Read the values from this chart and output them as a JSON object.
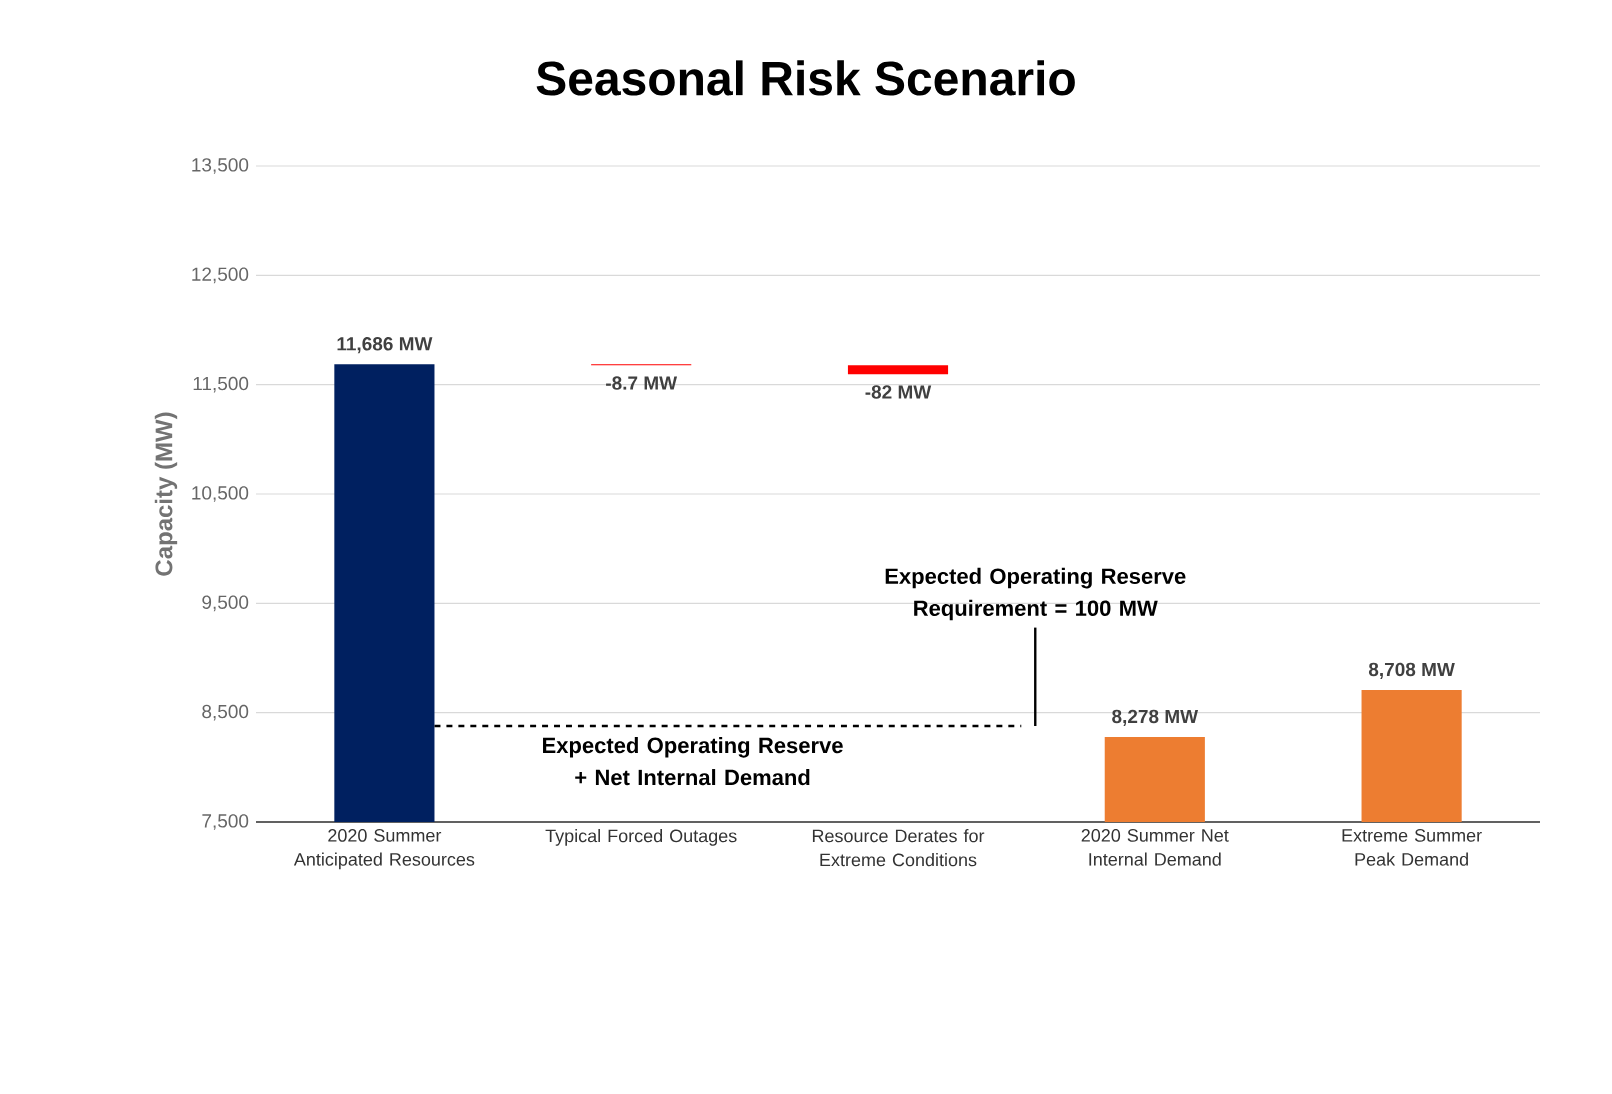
{
  "chart_data": {
    "type": "bar",
    "title": "Seasonal Risk Scenario",
    "ylabel": "Capacity (MW)",
    "categories": [
      "2020 Summer Anticipated Resources",
      "Typical Forced Outages",
      "Resource Derates for Extreme Conditions",
      "2020 Summer Net Internal Demand",
      "Extreme Summer Peak Demand"
    ],
    "values": [
      11686,
      -8.7,
      -82,
      8278,
      8708
    ],
    "base": [
      null,
      11686,
      11677.3,
      null,
      null
    ],
    "colors": [
      "#002060",
      "#ff0000",
      "#ff0000",
      "#ed7d31",
      "#ed7d31"
    ],
    "value_labels": [
      "11,686 MW",
      "-8.7 MW",
      "-82 MW",
      "8,278 MW",
      "8,708 MW"
    ],
    "ylim": [
      7500,
      13500
    ],
    "yticks": [
      {
        "value": 7500,
        "label": "7,500"
      },
      {
        "value": 8500,
        "label": "8,500"
      },
      {
        "value": 9500,
        "label": "9,500"
      },
      {
        "value": 10500,
        "label": "10,500"
      },
      {
        "value": 11500,
        "label": "11,500"
      },
      {
        "value": 12500,
        "label": "12,500"
      },
      {
        "value": 13500,
        "label": "13,500"
      }
    ],
    "grid": "y",
    "ref_lines": [
      {
        "axis": "y",
        "value": 8378,
        "label": "Expected Operating Reserve + Net Internal Demand",
        "line_style": "dashed",
        "color": "#000000"
      }
    ],
    "annotations": [
      "Expected Operating Reserve Requirement = 100 MW"
    ]
  }
}
